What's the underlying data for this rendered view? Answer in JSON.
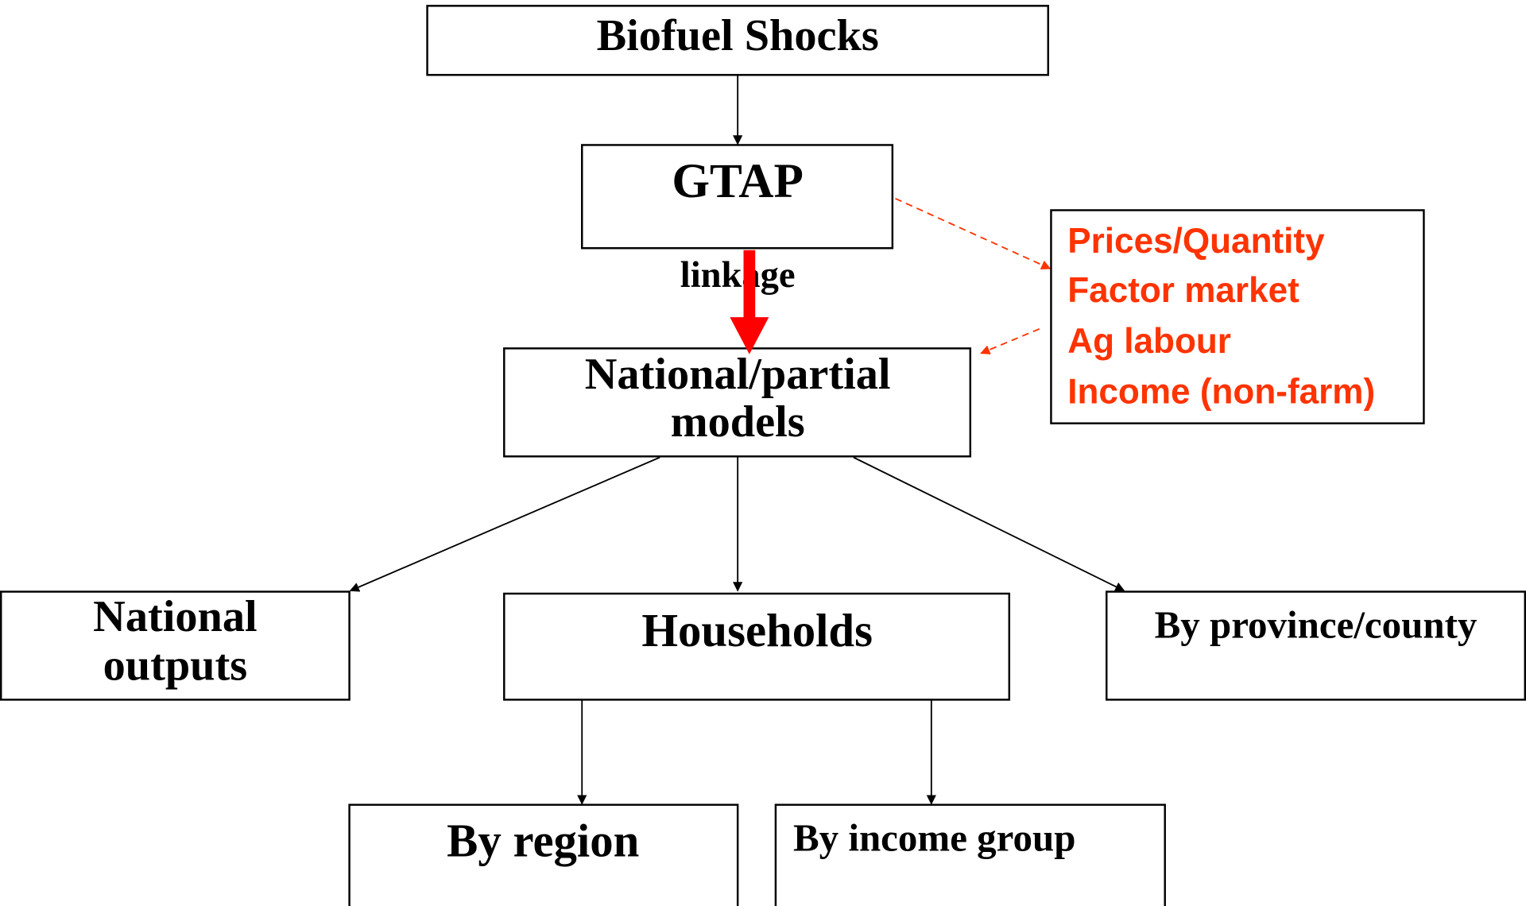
{
  "nodes": [
    {
      "lines": [
        "Biofuel Shocks"
      ]
    },
    {
      "lines": [
        "GTAP"
      ]
    },
    {
      "lines": [
        "National/partial",
        "models"
      ]
    },
    {
      "lines": [
        "National",
        "outputs"
      ]
    },
    {
      "lines": [
        "Households"
      ]
    },
    {
      "lines": [
        "By province/county"
      ]
    },
    {
      "lines": [
        "By region"
      ]
    },
    {
      "lines": [
        "By income group"
      ]
    }
  ],
  "edge_label": "linkage",
  "side_box": {
    "items": [
      "Prices/Quantity",
      "Factor market",
      "Ag labour",
      "Income (non-farm)"
    ]
  }
}
